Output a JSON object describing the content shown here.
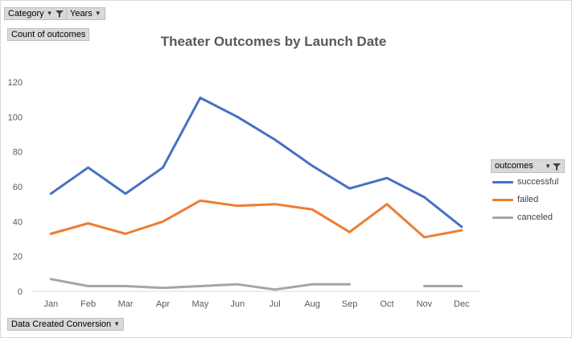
{
  "filters": {
    "category_label": "Category",
    "years_label": "Years",
    "values_label": "Count of outcomes",
    "axis_field_label": "Data Created Conversion"
  },
  "legend": {
    "header": "outcomes"
  },
  "chart_data": {
    "type": "line",
    "title": "Theater Outcomes by Launch Date",
    "xlabel": "",
    "ylabel": "",
    "categories": [
      "Jan",
      "Feb",
      "Mar",
      "Apr",
      "May",
      "Jun",
      "Jul",
      "Aug",
      "Sep",
      "Oct",
      "Nov",
      "Dec"
    ],
    "ylim": [
      0,
      120
    ],
    "yticks": [
      0,
      20,
      40,
      60,
      80,
      100,
      120
    ],
    "grid": false,
    "legend_position": "right",
    "series": [
      {
        "name": "successful",
        "color": "#4472c4",
        "values": [
          56,
          71,
          56,
          71,
          111,
          100,
          87,
          72,
          59,
          65,
          54,
          37
        ]
      },
      {
        "name": "failed",
        "color": "#ed7d31",
        "values": [
          33,
          39,
          33,
          40,
          52,
          49,
          50,
          47,
          34,
          50,
          31,
          35
        ]
      },
      {
        "name": "canceled",
        "color": "#a5a5a5",
        "values": [
          7,
          3,
          3,
          2,
          3,
          4,
          1,
          4,
          4,
          null,
          3,
          3
        ]
      }
    ]
  }
}
